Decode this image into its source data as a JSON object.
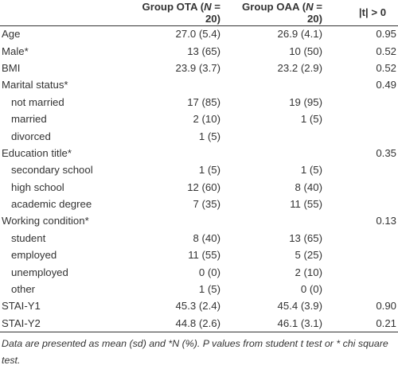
{
  "header": {
    "col_variable": "",
    "col_ota_prefix": "Group OTA (",
    "col_ota_n": "N",
    "col_ota_suffix": " = 20)",
    "col_oaa_prefix": "Group OAA (",
    "col_oaa_n": "N",
    "col_oaa_suffix": " = 20)",
    "col_p": "|t| > 0"
  },
  "rows": [
    {
      "label": "Age",
      "ota": "27.0 (5.4)",
      "oaa": "26.9 (4.1)",
      "p": "0.95",
      "indent": false
    },
    {
      "label": "Male*",
      "ota": "13 (65)",
      "oaa": "10 (50)",
      "p": "0.52",
      "indent": false
    },
    {
      "label": "BMI",
      "ota": "23.9 (3.7)",
      "oaa": "23.2 (2.9)",
      "p": "0.52",
      "indent": false
    },
    {
      "label": "Marital status*",
      "ota": "",
      "oaa": "",
      "p": "0.49",
      "indent": false
    },
    {
      "label": "not married",
      "ota": "17 (85)",
      "oaa": "19 (95)",
      "p": "",
      "indent": true
    },
    {
      "label": "married",
      "ota": "2 (10)",
      "oaa": "1 (5)",
      "p": "",
      "indent": true
    },
    {
      "label": "divorced",
      "ota": "1 (5)",
      "oaa": "",
      "p": "",
      "indent": true
    },
    {
      "label": "Education title*",
      "ota": "",
      "oaa": "",
      "p": "0.35",
      "indent": false
    },
    {
      "label": "secondary school",
      "ota": "1 (5)",
      "oaa": "1 (5)",
      "p": "",
      "indent": true
    },
    {
      "label": "high school",
      "ota": "12 (60)",
      "oaa": "8 (40)",
      "p": "",
      "indent": true
    },
    {
      "label": "academic degree",
      "ota": "7 (35)",
      "oaa": "11 (55)",
      "p": "",
      "indent": true
    },
    {
      "label": "Working condition*",
      "ota": "",
      "oaa": "",
      "p": "0.13",
      "indent": false
    },
    {
      "label": "student",
      "ota": "8 (40)",
      "oaa": "13 (65)",
      "p": "",
      "indent": true
    },
    {
      "label": "employed",
      "ota": "11 (55)",
      "oaa": "5 (25)",
      "p": "",
      "indent": true
    },
    {
      "label": "unemployed",
      "ota": "0 (0)",
      "oaa": "2 (10)",
      "p": "",
      "indent": true
    },
    {
      "label": "other",
      "ota": "1 (5)",
      "oaa": "0 (0)",
      "p": "",
      "indent": true
    },
    {
      "label": "STAI-Y1",
      "ota": "45.3 (2.4)",
      "oaa": "45.4 (3.9)",
      "p": "0.90",
      "indent": false
    },
    {
      "label": "STAI-Y2",
      "ota": "44.8 (2.6)",
      "oaa": "46.1 (3.1)",
      "p": "0.21",
      "indent": false
    }
  ],
  "note": "Data are presented as mean (sd) and *N (%). P values from student t test or * chi square test."
}
